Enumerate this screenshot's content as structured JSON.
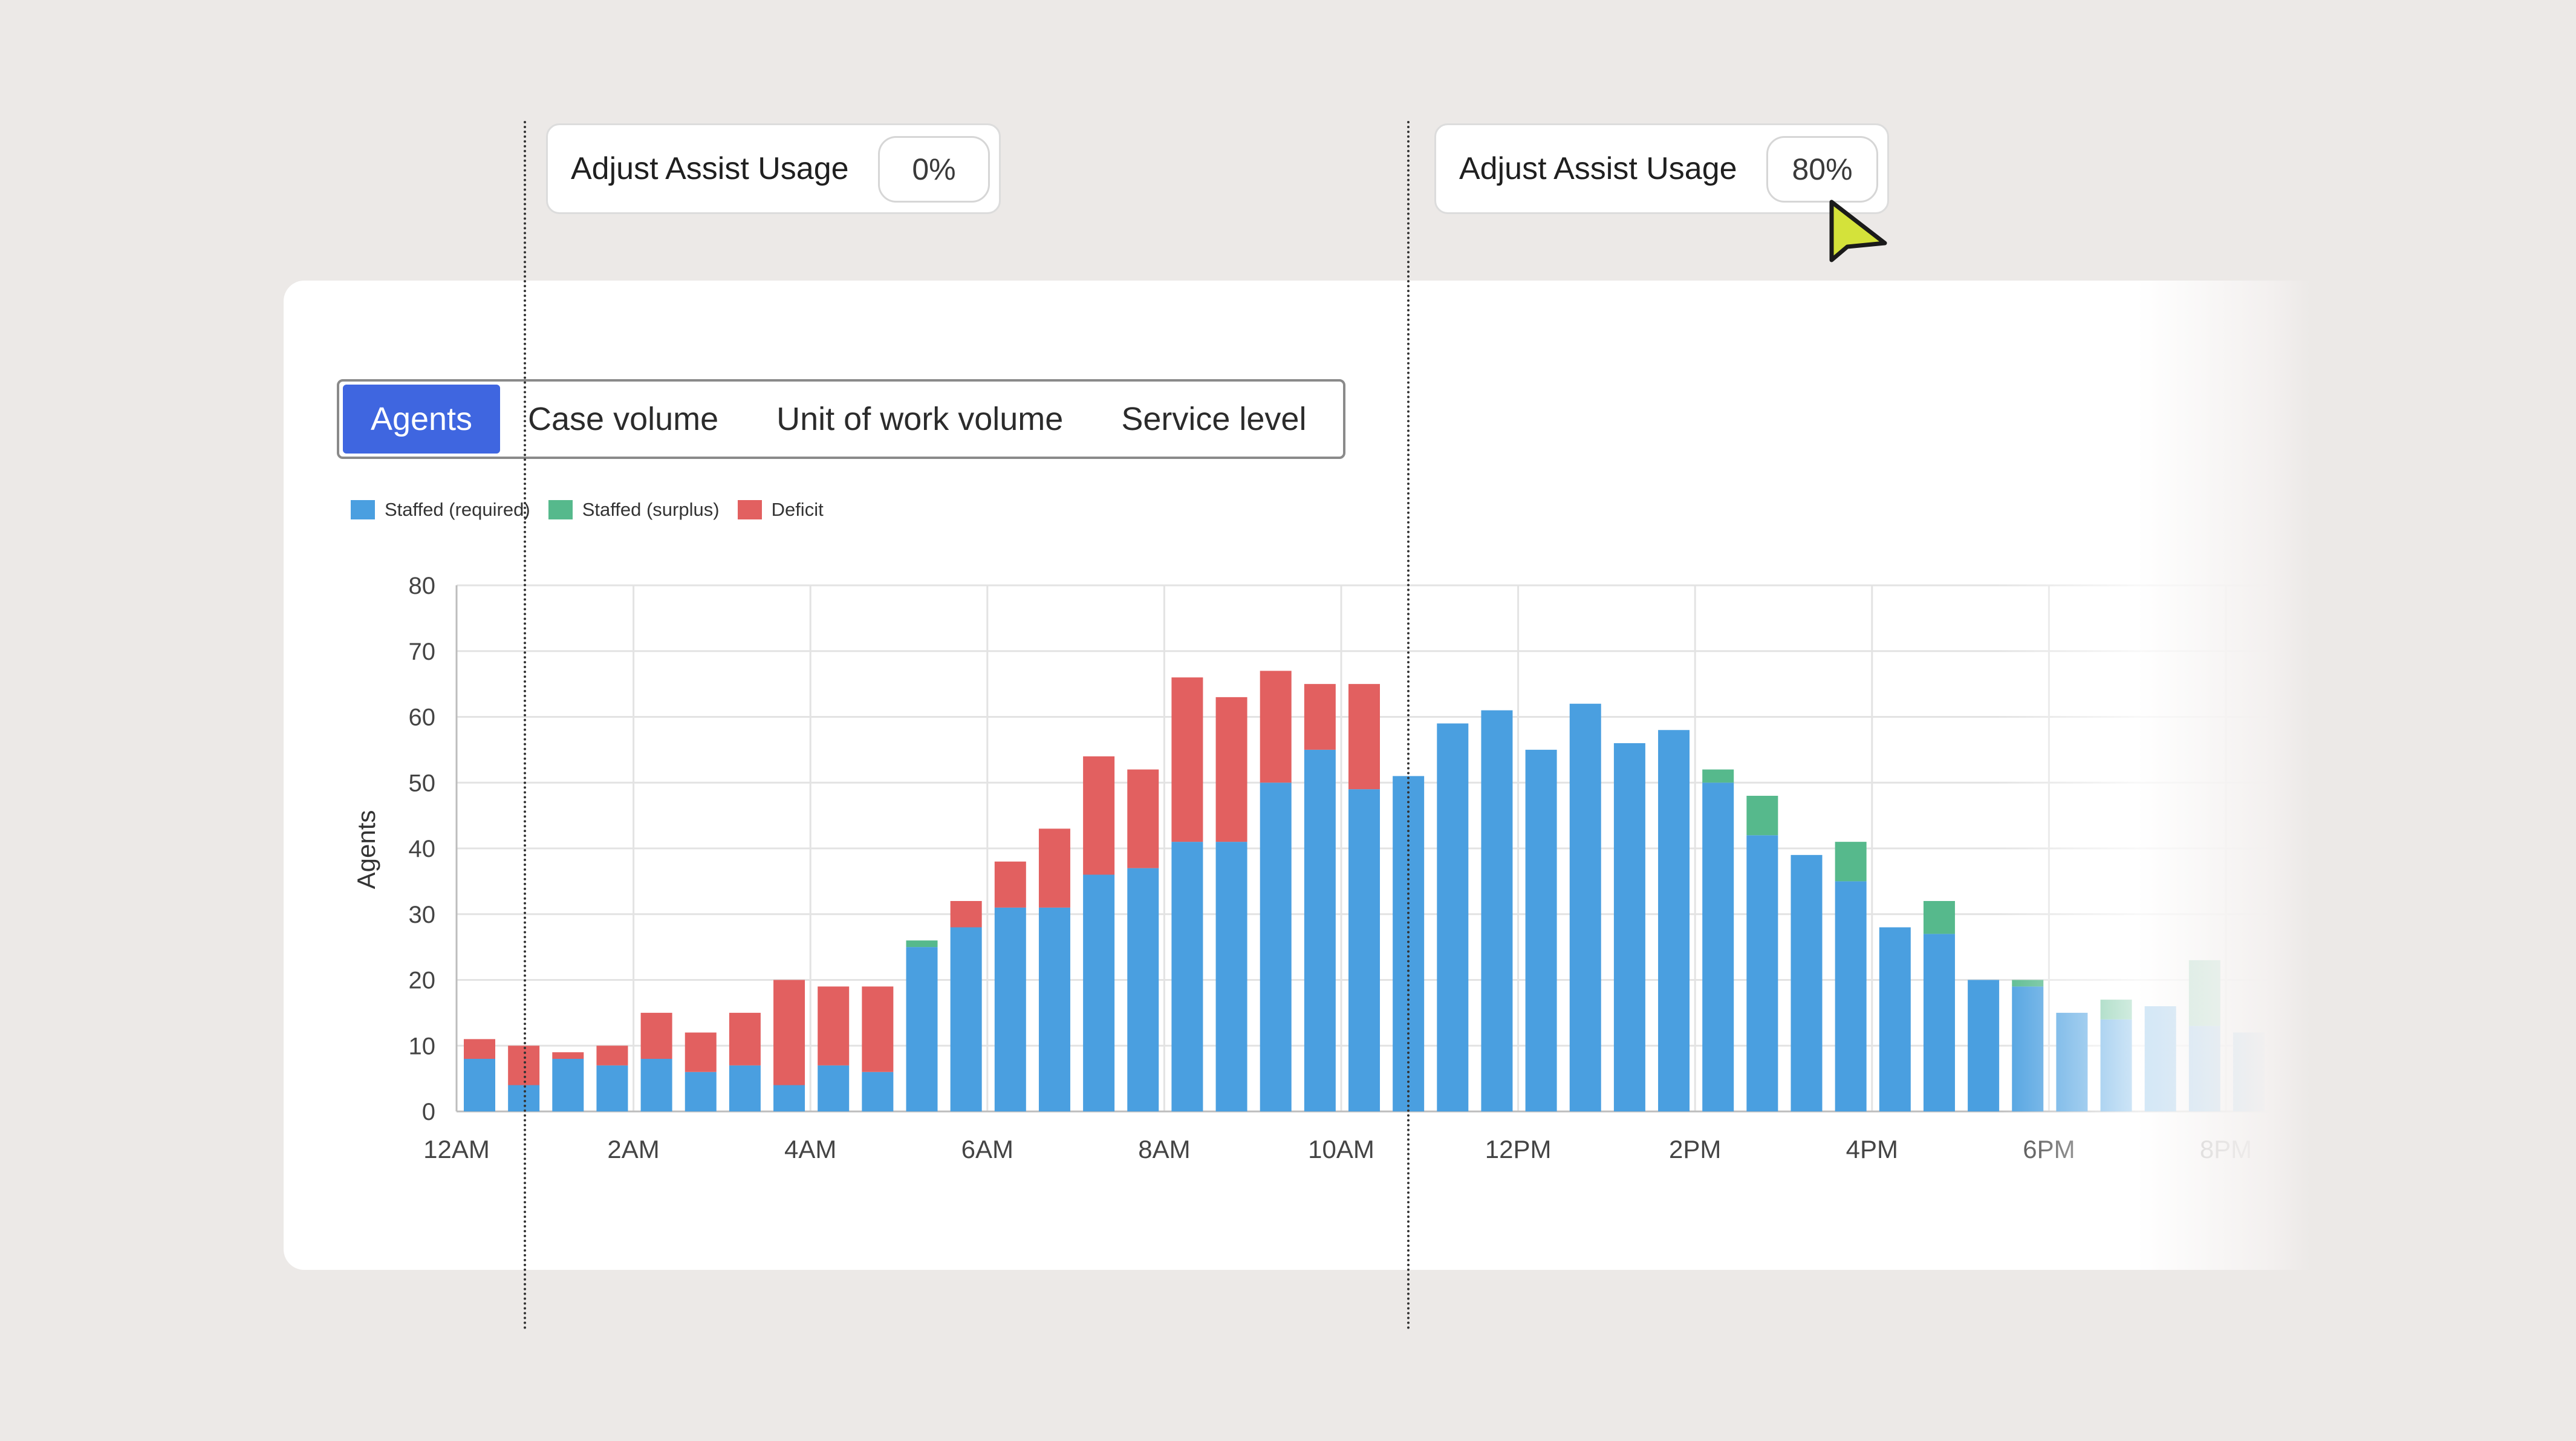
{
  "assist_controls": [
    {
      "label": "Adjust Assist Usage",
      "value": "0%"
    },
    {
      "label": "Adjust Assist Usage",
      "value": "80%"
    }
  ],
  "tabs": [
    {
      "label": "Agents",
      "active": true
    },
    {
      "label": "Case volume",
      "active": false
    },
    {
      "label": "Unit of work volume",
      "active": false
    },
    {
      "label": "Service level",
      "active": false
    }
  ],
  "legend": [
    {
      "label": "Staffed (required)",
      "color": "#4a9fe0"
    },
    {
      "label": "Staffed (surplus)",
      "color": "#56b98c"
    },
    {
      "label": "Deficit",
      "color": "#e26060"
    }
  ],
  "chart_data": {
    "type": "bar",
    "stacked": true,
    "ylabel": "Agents",
    "ylim": [
      0,
      80
    ],
    "y_ticks": [
      "0",
      "10",
      "20",
      "30",
      "40",
      "50",
      "60",
      "70",
      "80"
    ],
    "x_ticks": [
      "12AM",
      "2AM",
      "4AM",
      "6AM",
      "8AM",
      "10AM",
      "12PM",
      "2PM",
      "4PM",
      "6PM",
      "8PM"
    ],
    "x": [
      0,
      0.5,
      1,
      1.5,
      2,
      2.5,
      3,
      3.5,
      4,
      4.5,
      5,
      5.5,
      6,
      6.5,
      7,
      7.5,
      8,
      8.5,
      9,
      9.5,
      10,
      10.5,
      11,
      11.5,
      12,
      12.5,
      13,
      13.5,
      14,
      14.5,
      15,
      15.5,
      16,
      16.5,
      17,
      17.5,
      18,
      18.5,
      19,
      19.5,
      20
    ],
    "series": [
      {
        "name": "Staffed (required)",
        "color": "#4a9fe0",
        "values": [
          8,
          4,
          8,
          7,
          8,
          6,
          7,
          4,
          7,
          6,
          25,
          28,
          31,
          31,
          36,
          37,
          41,
          41,
          50,
          55,
          49,
          51,
          59,
          61,
          55,
          62,
          56,
          58,
          50,
          42,
          39,
          35,
          28,
          27,
          20,
          19,
          15,
          14,
          16,
          13,
          12
        ]
      },
      {
        "name": "Staffed (surplus)",
        "color": "#56b98c",
        "values": [
          0,
          0,
          0,
          0,
          0,
          0,
          0,
          0,
          0,
          0,
          1,
          0,
          0,
          0,
          0,
          0,
          0,
          0,
          0,
          0,
          0,
          0,
          0,
          0,
          0,
          0,
          0,
          0,
          2,
          6,
          0,
          6,
          0,
          5,
          0,
          1,
          0,
          3,
          0,
          10,
          0
        ]
      },
      {
        "name": "Deficit",
        "color": "#e26060",
        "values": [
          3,
          6,
          1,
          3,
          7,
          6,
          8,
          16,
          12,
          13,
          0,
          4,
          7,
          12,
          18,
          15,
          25,
          22,
          17,
          10,
          16,
          0,
          0,
          0,
          0,
          0,
          0,
          0,
          0,
          0,
          0,
          0,
          0,
          0,
          0,
          0,
          0,
          0,
          0,
          0,
          0
        ]
      }
    ]
  }
}
